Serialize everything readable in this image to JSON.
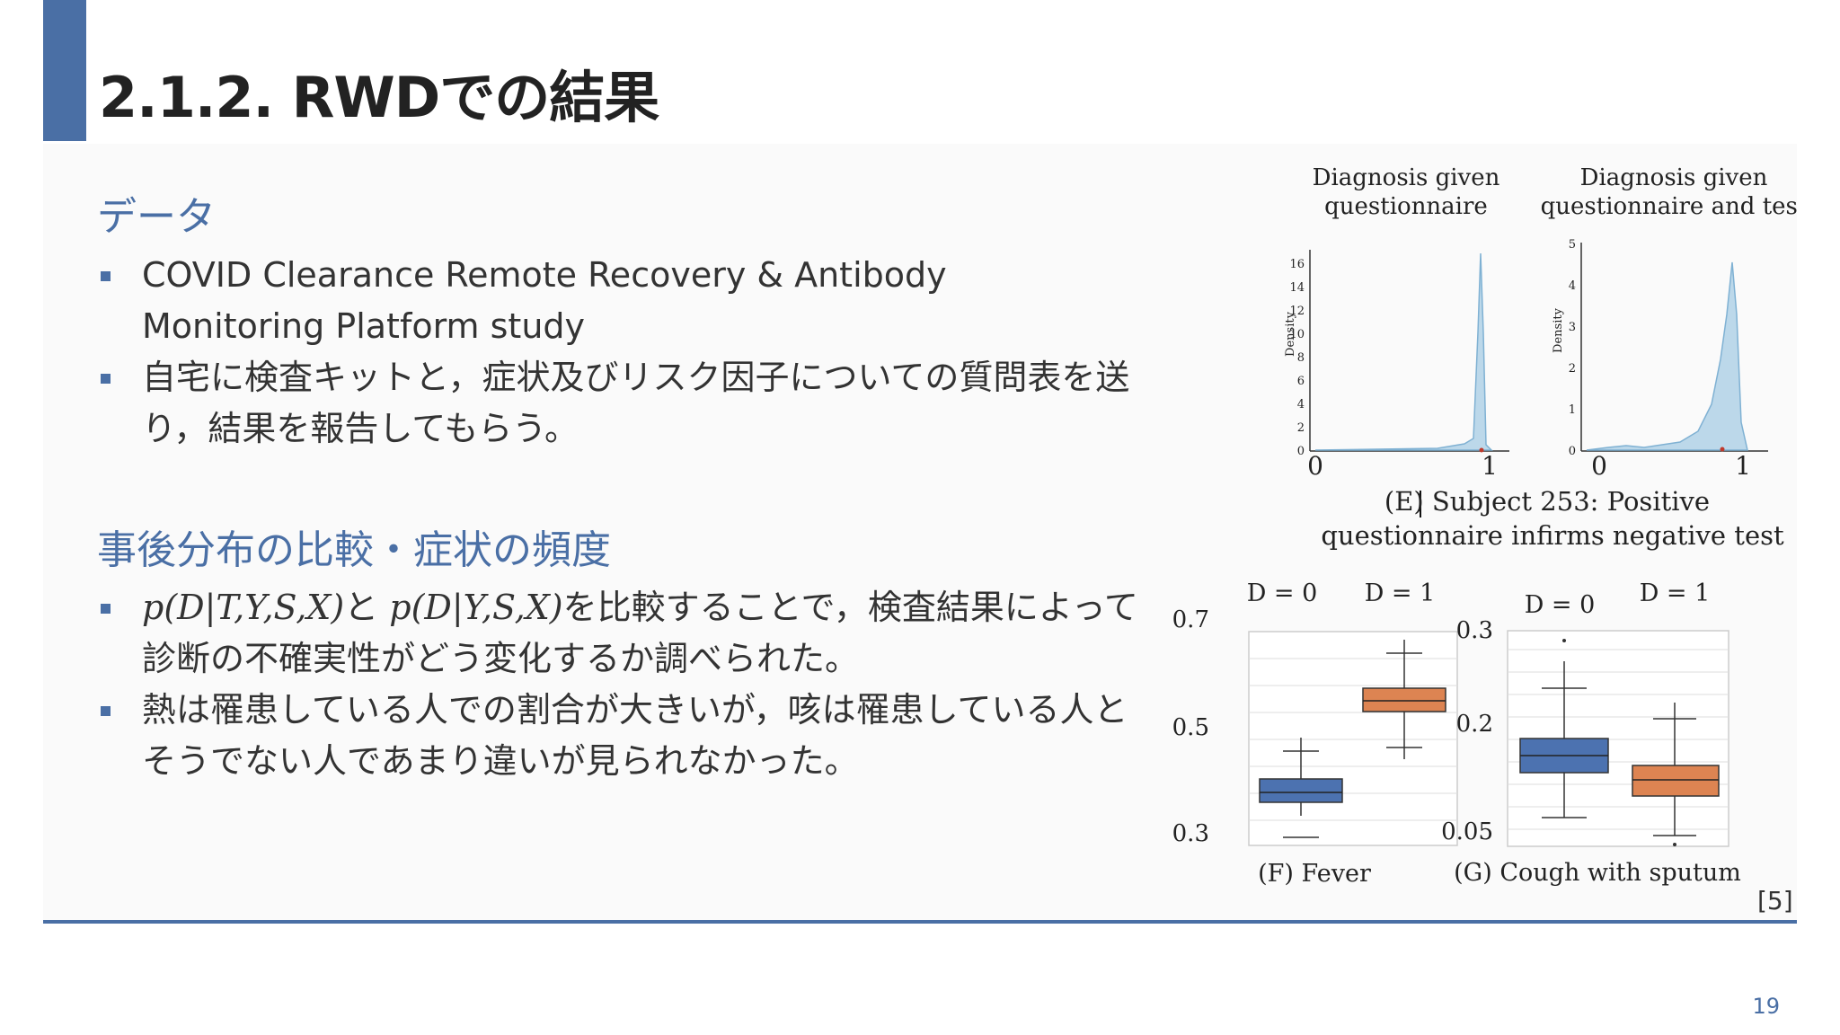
{
  "slide": {
    "title": "2.1.2. RWDでの結果",
    "page_number": "19",
    "reference": "[5]"
  },
  "data_section": {
    "heading": "データ",
    "bullets": [
      "COVID Clearance Remote Recovery & Antibody Monitoring Platform study",
      "自宅に検査キットと，症状及びリスク因子についての質問表を送り，結果を報告してもらう。"
    ]
  },
  "comparison_section": {
    "heading": "事後分布の比較・症状の頻度",
    "bullet1": {
      "math1": "p(D|T,Y,S,X)",
      "join": "と ",
      "math2": "p(D|Y,S,X)",
      "rest": "を比較することで，検査結果によって診断の不確実性がどう変化するか調べられた。"
    },
    "bullet2": "熱は罹患している人での割合が大きいが，咳は罹患している人とそうでない人であまり違いが見られなかった。"
  },
  "figure": {
    "density_left": {
      "title_line1": "Diagnosis given",
      "title_line2": "questionnaire",
      "ylabel": "Density",
      "yticks": [
        "0",
        "2",
        "4",
        "6",
        "8",
        "10",
        "12",
        "14",
        "16"
      ],
      "xticks": [
        "0",
        "1"
      ]
    },
    "density_right": {
      "title_line1": "Diagnosis given",
      "title_line2": "questionnaire and test",
      "ylabel": "Density",
      "yticks": [
        "0",
        "1",
        "2",
        "3",
        "4",
        "5"
      ],
      "xticks": [
        "0",
        "1"
      ]
    },
    "caption_e_line1": "(E) Subject 253: Positive",
    "caption_e_line2": "questionnaire infirms negative test",
    "box_fever": {
      "yticks": [
        "0.7",
        "0.5",
        "0.3"
      ],
      "groups": [
        "D = 0",
        "D = 1"
      ],
      "caption": "(F) Fever"
    },
    "box_cough": {
      "yticks": [
        "0.3",
        "0.2",
        "0.05"
      ],
      "groups": [
        "D = 0",
        "D = 1"
      ],
      "caption": "(G) Cough with sputum"
    },
    "colors": {
      "density_fill": "#bcd8ea",
      "box_d0": "#4c72b0",
      "box_d1": "#dd8452"
    }
  }
}
